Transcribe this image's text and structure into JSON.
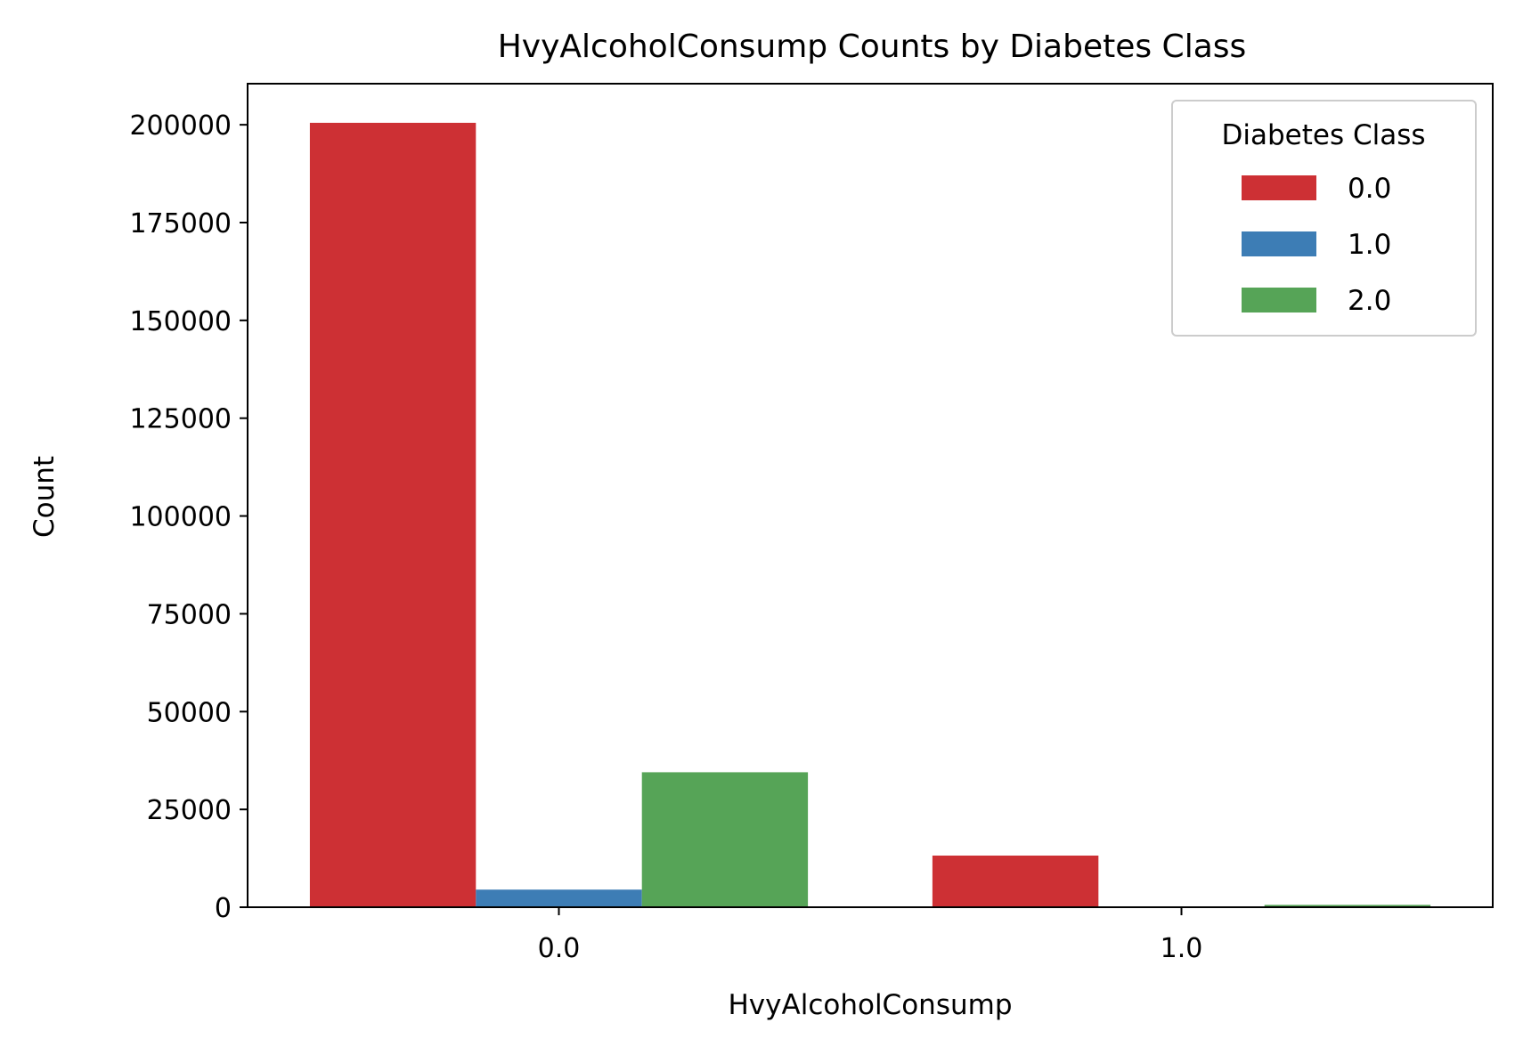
{
  "chart_data": {
    "type": "bar",
    "title": "HvyAlcoholConsump Counts by Diabetes Class",
    "xlabel": "HvyAlcoholConsump",
    "ylabel": "Count",
    "categories": [
      "0.0",
      "1.0"
    ],
    "series": [
      {
        "name": "0.0",
        "color": "#cd3034",
        "values": [
          200500,
          13200
        ]
      },
      {
        "name": "1.0",
        "color": "#3d7db5",
        "values": [
          4500,
          100
        ]
      },
      {
        "name": "2.0",
        "color": "#56a457",
        "values": [
          34500,
          600
        ]
      }
    ],
    "ylim": [
      0,
      210500
    ],
    "yticks": [
      0,
      25000,
      50000,
      75000,
      100000,
      125000,
      150000,
      175000,
      200000
    ],
    "ytick_labels": [
      "0",
      "25000",
      "50000",
      "75000",
      "100000",
      "125000",
      "150000",
      "175000",
      "200000"
    ],
    "grid": false,
    "legend": {
      "title": "Diabetes Class",
      "placement": "top-right",
      "entries": [
        "0.0",
        "1.0",
        "2.0"
      ]
    }
  }
}
